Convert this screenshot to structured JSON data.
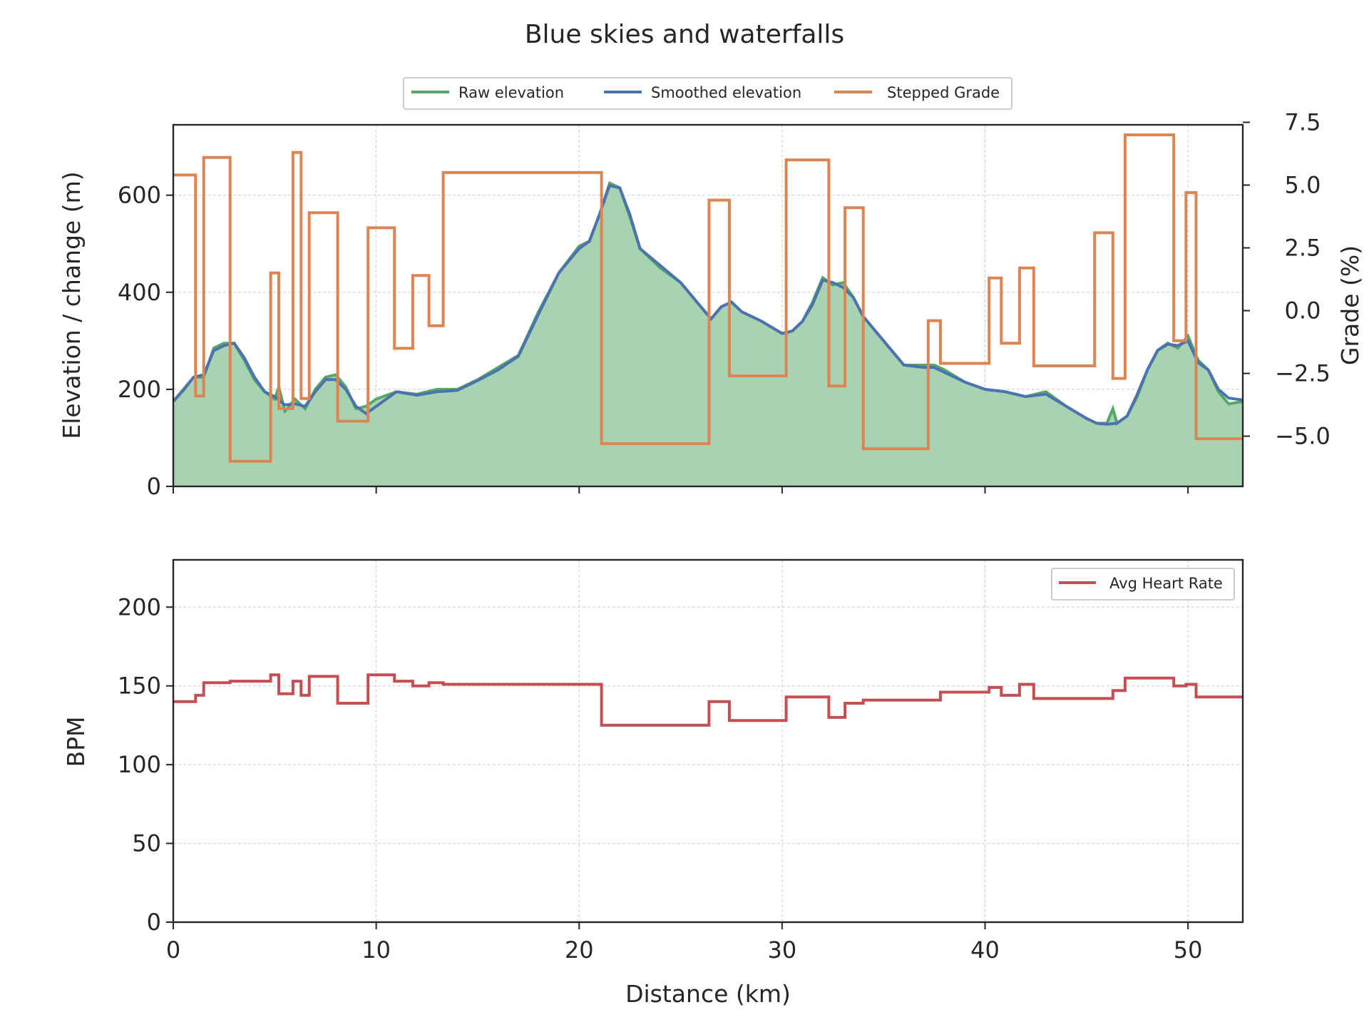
{
  "chart_data": {
    "title": "Blue skies and waterfalls",
    "type": "line",
    "panels": [
      {
        "id": "elevation",
        "ylabel": "Elevation / change (m)",
        "ylabel_right": "Grade (%)",
        "xlim": [
          0,
          52.7
        ],
        "ylim": [
          0,
          745
        ],
        "ylim_right": [
          -7.0,
          7.4
        ],
        "yticks": [
          0,
          200,
          400,
          600
        ],
        "yticks_right": [
          7.5,
          5.0,
          2.5,
          0.0,
          -2.5,
          -5.0
        ],
        "yticks_right_labels": [
          "7.5",
          "5.0",
          "2.5",
          "0.0",
          "−2.5",
          "−5.0"
        ],
        "grid": true,
        "legend": {
          "position": "top-center",
          "entries": [
            "Raw elevation",
            "Smoothed elevation",
            "Stepped Grade"
          ]
        },
        "series": [
          {
            "name": "Raw elevation",
            "color": "#55a868",
            "kind": "line-fill",
            "fill": "#a8d3b1",
            "x": [
              0,
              0.5,
              1,
              1.5,
              2,
              2.5,
              3,
              3.5,
              4,
              4.5,
              5,
              5.2,
              5.5,
              6,
              6.5,
              7,
              7.5,
              8,
              8.5,
              9,
              9.5,
              10,
              11,
              12,
              13,
              14,
              15,
              16,
              17,
              18,
              19,
              20,
              20.5,
              21,
              21.5,
              22,
              22.5,
              23,
              24,
              25,
              26,
              26.5,
              27,
              27.5,
              28,
              29,
              30,
              30.5,
              31,
              31.5,
              32,
              32.5,
              33,
              33.5,
              34,
              35,
              36,
              37,
              37.5,
              38,
              39,
              40,
              41,
              42,
              43,
              44,
              45,
              45.5,
              46,
              46.3,
              46.5,
              47,
              47.5,
              48,
              48.5,
              49,
              49.5,
              50,
              50.5,
              51,
              51.5,
              52,
              52.7
            ],
            "y": [
              175,
              200,
              225,
              225,
              285,
              295,
              295,
              260,
              220,
              195,
              180,
              205,
              155,
              180,
              160,
              200,
              225,
              230,
              205,
              160,
              165,
              180,
              195,
              190,
              200,
              200,
              220,
              245,
              270,
              360,
              440,
              495,
              505,
              560,
              625,
              615,
              555,
              490,
              450,
              420,
              370,
              345,
              370,
              380,
              360,
              340,
              315,
              320,
              340,
              380,
              430,
              415,
              420,
              390,
              350,
              300,
              250,
              250,
              250,
              240,
              215,
              200,
              195,
              185,
              195,
              165,
              140,
              130,
              130,
              160,
              130,
              145,
              185,
              240,
              280,
              295,
              285,
              310,
              260,
              240,
              195,
              170,
              175
            ]
          },
          {
            "name": "Smoothed elevation",
            "color": "#4c72b0",
            "kind": "line",
            "x": [
              0,
              0.5,
              1,
              1.5,
              2,
              2.5,
              3,
              3.5,
              4,
              4.5,
              5,
              5.5,
              6,
              6.5,
              7,
              7.5,
              8,
              8.5,
              9,
              9.5,
              10,
              11,
              12,
              13,
              14,
              15,
              16,
              17,
              18,
              19,
              20,
              20.5,
              21,
              21.5,
              22,
              22.5,
              23,
              24,
              25,
              26,
              26.5,
              27,
              27.5,
              28,
              29,
              30,
              30.5,
              31,
              31.5,
              32,
              32.5,
              33,
              33.5,
              34,
              35,
              36,
              37,
              37.5,
              38,
              39,
              40,
              41,
              42,
              43,
              44,
              45,
              45.5,
              46,
              46.5,
              47,
              47.5,
              48,
              48.5,
              49,
              49.5,
              50,
              50.5,
              51,
              51.5,
              52,
              52.7
            ],
            "y": [
              175,
              198,
              225,
              230,
              280,
              290,
              295,
              265,
              225,
              195,
              185,
              168,
              170,
              165,
              195,
              220,
              220,
              200,
              165,
              150,
              165,
              195,
              188,
              195,
              198,
              218,
              240,
              268,
              355,
              440,
              490,
              505,
              560,
              620,
              615,
              560,
              490,
              455,
              420,
              370,
              345,
              370,
              380,
              360,
              340,
              315,
              320,
              340,
              375,
              425,
              420,
              410,
              390,
              350,
              300,
              250,
              245,
              245,
              235,
              215,
              200,
              195,
              185,
              190,
              165,
              140,
              130,
              128,
              130,
              145,
              190,
              240,
              280,
              293,
              290,
              300,
              255,
              240,
              200,
              182,
              178
            ]
          },
          {
            "name": "Stepped Grade",
            "color": "#dd8452",
            "kind": "step",
            "axis": "right",
            "x": [
              0,
              1.1,
              1.5,
              2.8,
              4.8,
              5.2,
              5.9,
              6.3,
              6.7,
              8.1,
              9.6,
              10.9,
              11.8,
              12.6,
              13.3,
              21.1,
              26.4,
              27.4,
              30.2,
              32.3,
              33.1,
              34.0,
              37.2,
              37.8,
              40.2,
              40.8,
              41.7,
              42.4,
              45.4,
              46.3,
              46.9,
              49.3,
              49.9,
              50.4,
              52.7
            ],
            "y": [
              5.4,
              -3.4,
              6.1,
              -6.0,
              1.5,
              -3.9,
              6.3,
              -3.5,
              3.9,
              -4.4,
              3.3,
              -1.5,
              1.4,
              -0.6,
              5.5,
              -5.3,
              4.4,
              -2.6,
              6.0,
              -3.0,
              4.1,
              -5.5,
              -0.4,
              -2.1,
              1.3,
              -1.3,
              1.7,
              -2.2,
              3.1,
              -2.7,
              7.0,
              -1.2,
              4.7,
              -5.1,
              -5.1
            ]
          }
        ]
      },
      {
        "id": "heart-rate",
        "ylabel": "BPM",
        "xlabel": "Distance (km)",
        "xlim": [
          0,
          52.7
        ],
        "ylim": [
          0,
          230
        ],
        "yticks": [
          0,
          50,
          100,
          150,
          200
        ],
        "xticks": [
          0,
          10,
          20,
          30,
          40,
          50
        ],
        "grid": true,
        "legend": {
          "position": "top-right",
          "entries": [
            "Avg Heart Rate"
          ]
        },
        "series": [
          {
            "name": "Avg Heart Rate",
            "color": "#c44e52",
            "kind": "step",
            "x": [
              0,
              1.1,
              1.5,
              2.8,
              4.8,
              5.2,
              5.9,
              6.3,
              6.7,
              8.1,
              9.6,
              10.9,
              11.8,
              12.6,
              13.3,
              21.1,
              26.4,
              27.4,
              30.2,
              32.3,
              33.1,
              34.0,
              37.2,
              37.8,
              40.2,
              40.8,
              41.7,
              42.4,
              45.4,
              46.3,
              46.9,
              49.3,
              49.9,
              50.4,
              52.7
            ],
            "y": [
              140,
              144,
              152,
              153,
              157,
              145,
              153,
              144,
              156,
              139,
              157,
              153,
              150,
              152,
              151,
              125,
              140,
              128,
              143,
              130,
              139,
              141,
              141,
              146,
              149,
              144,
              151,
              142,
              142,
              147,
              155,
              150,
              151,
              143,
              143
            ]
          }
        ]
      }
    ]
  }
}
